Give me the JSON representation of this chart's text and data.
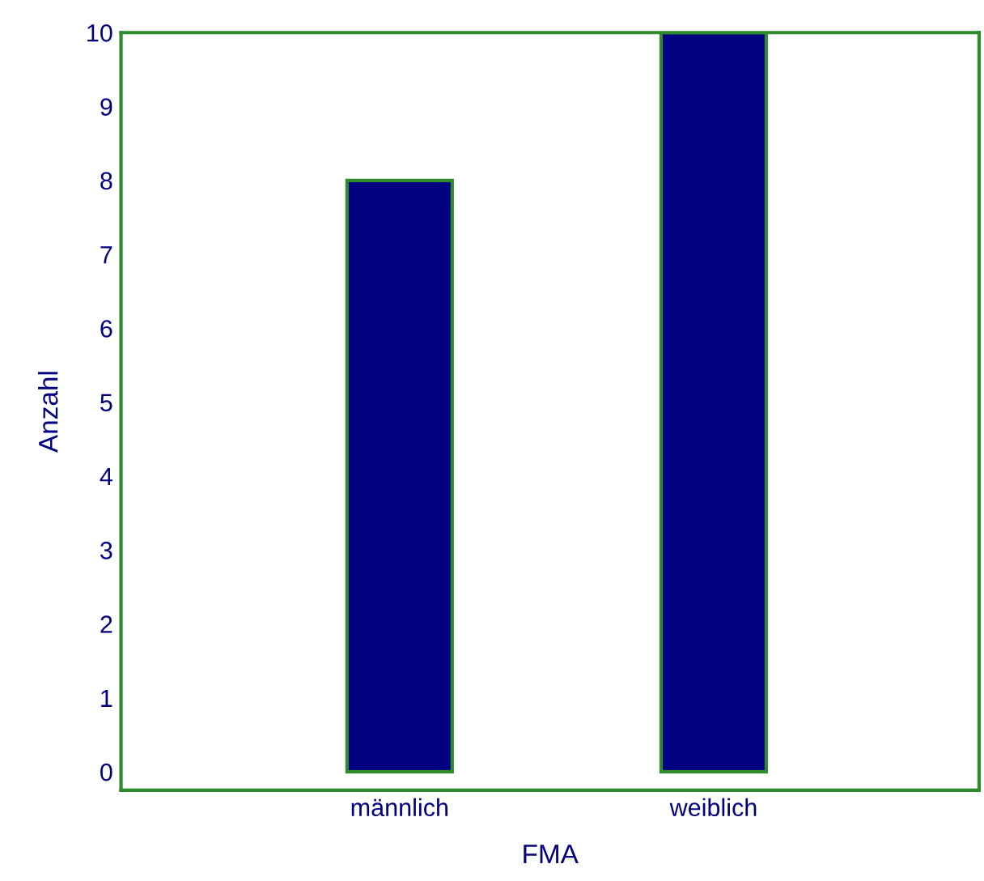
{
  "chart_data": {
    "type": "bar",
    "xlabel": "FMA",
    "ylabel": "Anzahl",
    "categories": [
      "männlich",
      "weiblich"
    ],
    "series": [
      {
        "color": "#000080",
        "values": [
          8,
          10
        ]
      }
    ],
    "ylim": [
      -0.25,
      10
    ],
    "yticks": [
      0,
      1,
      2,
      3,
      4,
      5,
      6,
      7,
      8,
      9,
      10
    ],
    "grid": false,
    "legend": false
  }
}
